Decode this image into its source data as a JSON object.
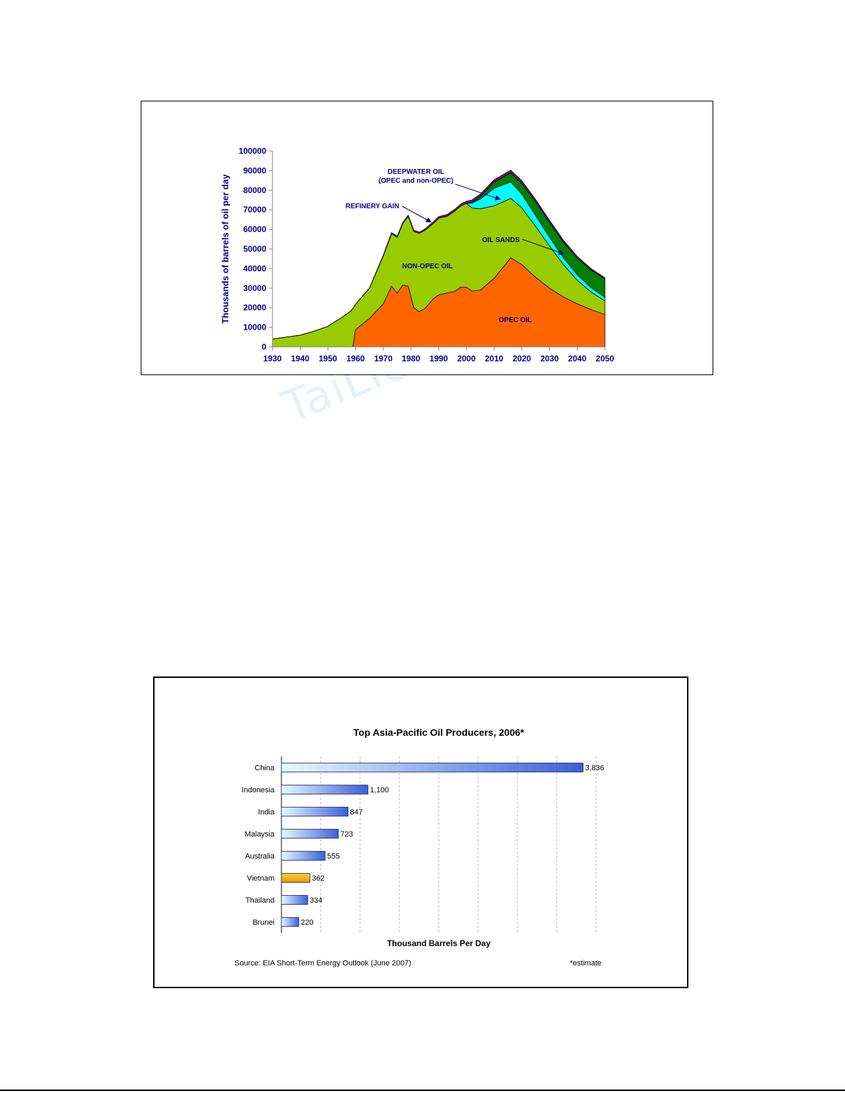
{
  "chart_data": [
    {
      "type": "area",
      "stacked": true,
      "title": "",
      "xlabel": "",
      "ylabel": "Thousands of barrels of oil per day",
      "xlim": [
        1930,
        2050
      ],
      "ylim": [
        0,
        100000
      ],
      "x_ticks": [
        1930,
        1940,
        1950,
        1960,
        1970,
        1980,
        1990,
        2000,
        2010,
        2020,
        2030,
        2040,
        2050
      ],
      "y_ticks": [
        0,
        10000,
        20000,
        30000,
        40000,
        50000,
        60000,
        70000,
        80000,
        90000,
        100000
      ],
      "colors": {
        "opec": "#ff6600",
        "nonopec": "#99cc00",
        "oilsands": "#00ffff",
        "deepwater": "#008000",
        "refinery": "#800080",
        "text": "#000080"
      },
      "x": [
        1930,
        1940,
        1945,
        1950,
        1955,
        1958,
        1959,
        1960,
        1965,
        1970,
        1973,
        1975,
        1977,
        1979,
        1981,
        1983,
        1985,
        1988,
        1990,
        1993,
        1996,
        1998,
        2000,
        2002,
        2005,
        2010,
        2016,
        2020,
        2025,
        2030,
        2035,
        2040,
        2045,
        2050
      ],
      "series": [
        {
          "key": "opec",
          "values": [
            0,
            0,
            0,
            0,
            0,
            0,
            0,
            8800,
            14500,
            22000,
            31000,
            27500,
            31500,
            31000,
            20000,
            18000,
            19500,
            24500,
            26500,
            27500,
            28500,
            30500,
            30500,
            28500,
            29000,
            35000,
            45500,
            42000,
            35500,
            30000,
            25500,
            22000,
            19000,
            16500
          ]
        },
        {
          "key": "nonopec",
          "values": [
            4000,
            6000,
            8000,
            10500,
            15000,
            18000,
            19500,
            13000,
            15500,
            24500,
            26800,
            28500,
            31500,
            35700,
            39000,
            40000,
            40000,
            38500,
            39200,
            39200,
            41000,
            41500,
            42800,
            42400,
            41500,
            37000,
            30300,
            29000,
            26000,
            21500,
            16500,
            12000,
            9000,
            7000
          ]
        },
        {
          "key": "oilsands",
          "values": [
            0,
            0,
            0,
            0,
            0,
            0,
            0,
            0,
            0,
            0,
            0,
            0,
            0,
            0,
            0,
            0,
            0,
            0,
            0,
            0,
            0,
            0,
            0,
            2500,
            5000,
            9000,
            8500,
            7000,
            5500,
            4500,
            3500,
            2800,
            2200,
            1800
          ]
        },
        {
          "key": "deepwater",
          "values": [
            0,
            0,
            0,
            0,
            0,
            0,
            0,
            0,
            0,
            0,
            0,
            0,
            0,
            0,
            0,
            0,
            0,
            0,
            0,
            0,
            0,
            0,
            0,
            500,
            1300,
            3000,
            4500,
            5500,
            7000,
            7500,
            8000,
            8500,
            9000,
            9300
          ]
        },
        {
          "key": "refinery",
          "values": [
            0,
            0,
            0,
            0,
            0,
            0,
            0,
            0,
            0,
            400,
            500,
            500,
            500,
            600,
            600,
            600,
            700,
            800,
            800,
            900,
            1000,
            1000,
            1100,
            1100,
            1200,
            1300,
            1400,
            1300,
            1200,
            1100,
            1000,
            900,
            800,
            700
          ]
        }
      ],
      "labels": {
        "deepwater": [
          "DEEPWATER OIL",
          "(OPEC and non-OPEC)"
        ],
        "refinery": "REFINERY GAIN",
        "oilsands": "OIL SANDS",
        "nonopec": "NON-OPEC OIL",
        "opec": "OPEC OIL"
      }
    },
    {
      "type": "bar",
      "orientation": "horizontal",
      "title": "Top Asia-Pacific Oil Producers, 2006*",
      "xlabel": "Thousand Barrels Per Day",
      "ylabel": "",
      "xlim": [
        0,
        4000
      ],
      "grid": true,
      "categories": [
        "China",
        "Indonesia",
        "India",
        "Malaysia",
        "Australia",
        "Vietnam",
        "Thailand",
        "Brunei"
      ],
      "values": [
        3836,
        1100,
        847,
        723,
        555,
        362,
        334,
        220
      ],
      "value_labels": [
        "3,836",
        "1,100",
        "847",
        "723",
        "555",
        "362",
        "334",
        "220"
      ],
      "highlight": "Vietnam",
      "colors": {
        "bar_start": "#e6fbff",
        "bar_end": "#3a5fd9",
        "highlight_start": "#ffcc44",
        "highlight_end": "#e89a00"
      },
      "source": "Source: EIA Short-Term Energy Outlook (June 2007)",
      "note": "*estimate"
    }
  ],
  "watermark": "TaiLieu"
}
